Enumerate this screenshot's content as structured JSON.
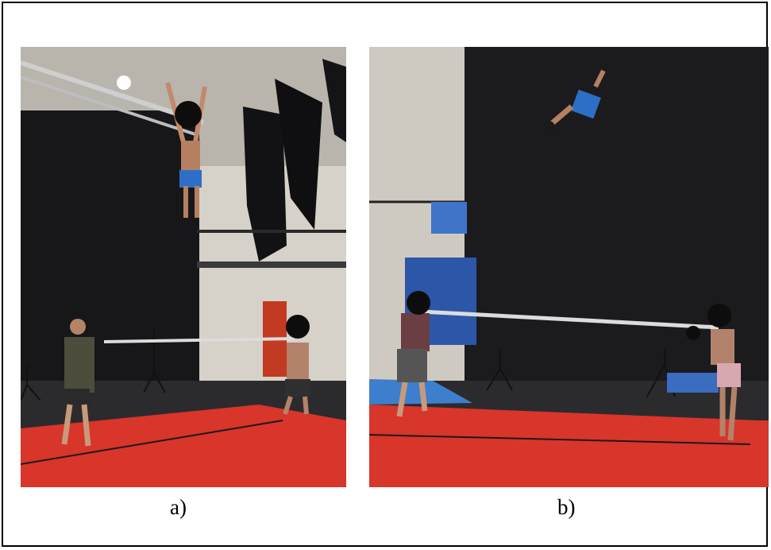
{
  "figure": {
    "panels": [
      {
        "id": "a",
        "caption": "a)"
      },
      {
        "id": "b",
        "caption": "b)"
      }
    ]
  },
  "colors": {
    "stage_floor": "#2a2a2c",
    "mat_red": "#d8352b",
    "curtain": "#1a1a1d",
    "wall": "#c9c4bb",
    "shorts_blue": "#2d6fc6",
    "face_mask": "#0d0d0d"
  },
  "icons": [
    "smiley-face-mask-icon"
  ]
}
